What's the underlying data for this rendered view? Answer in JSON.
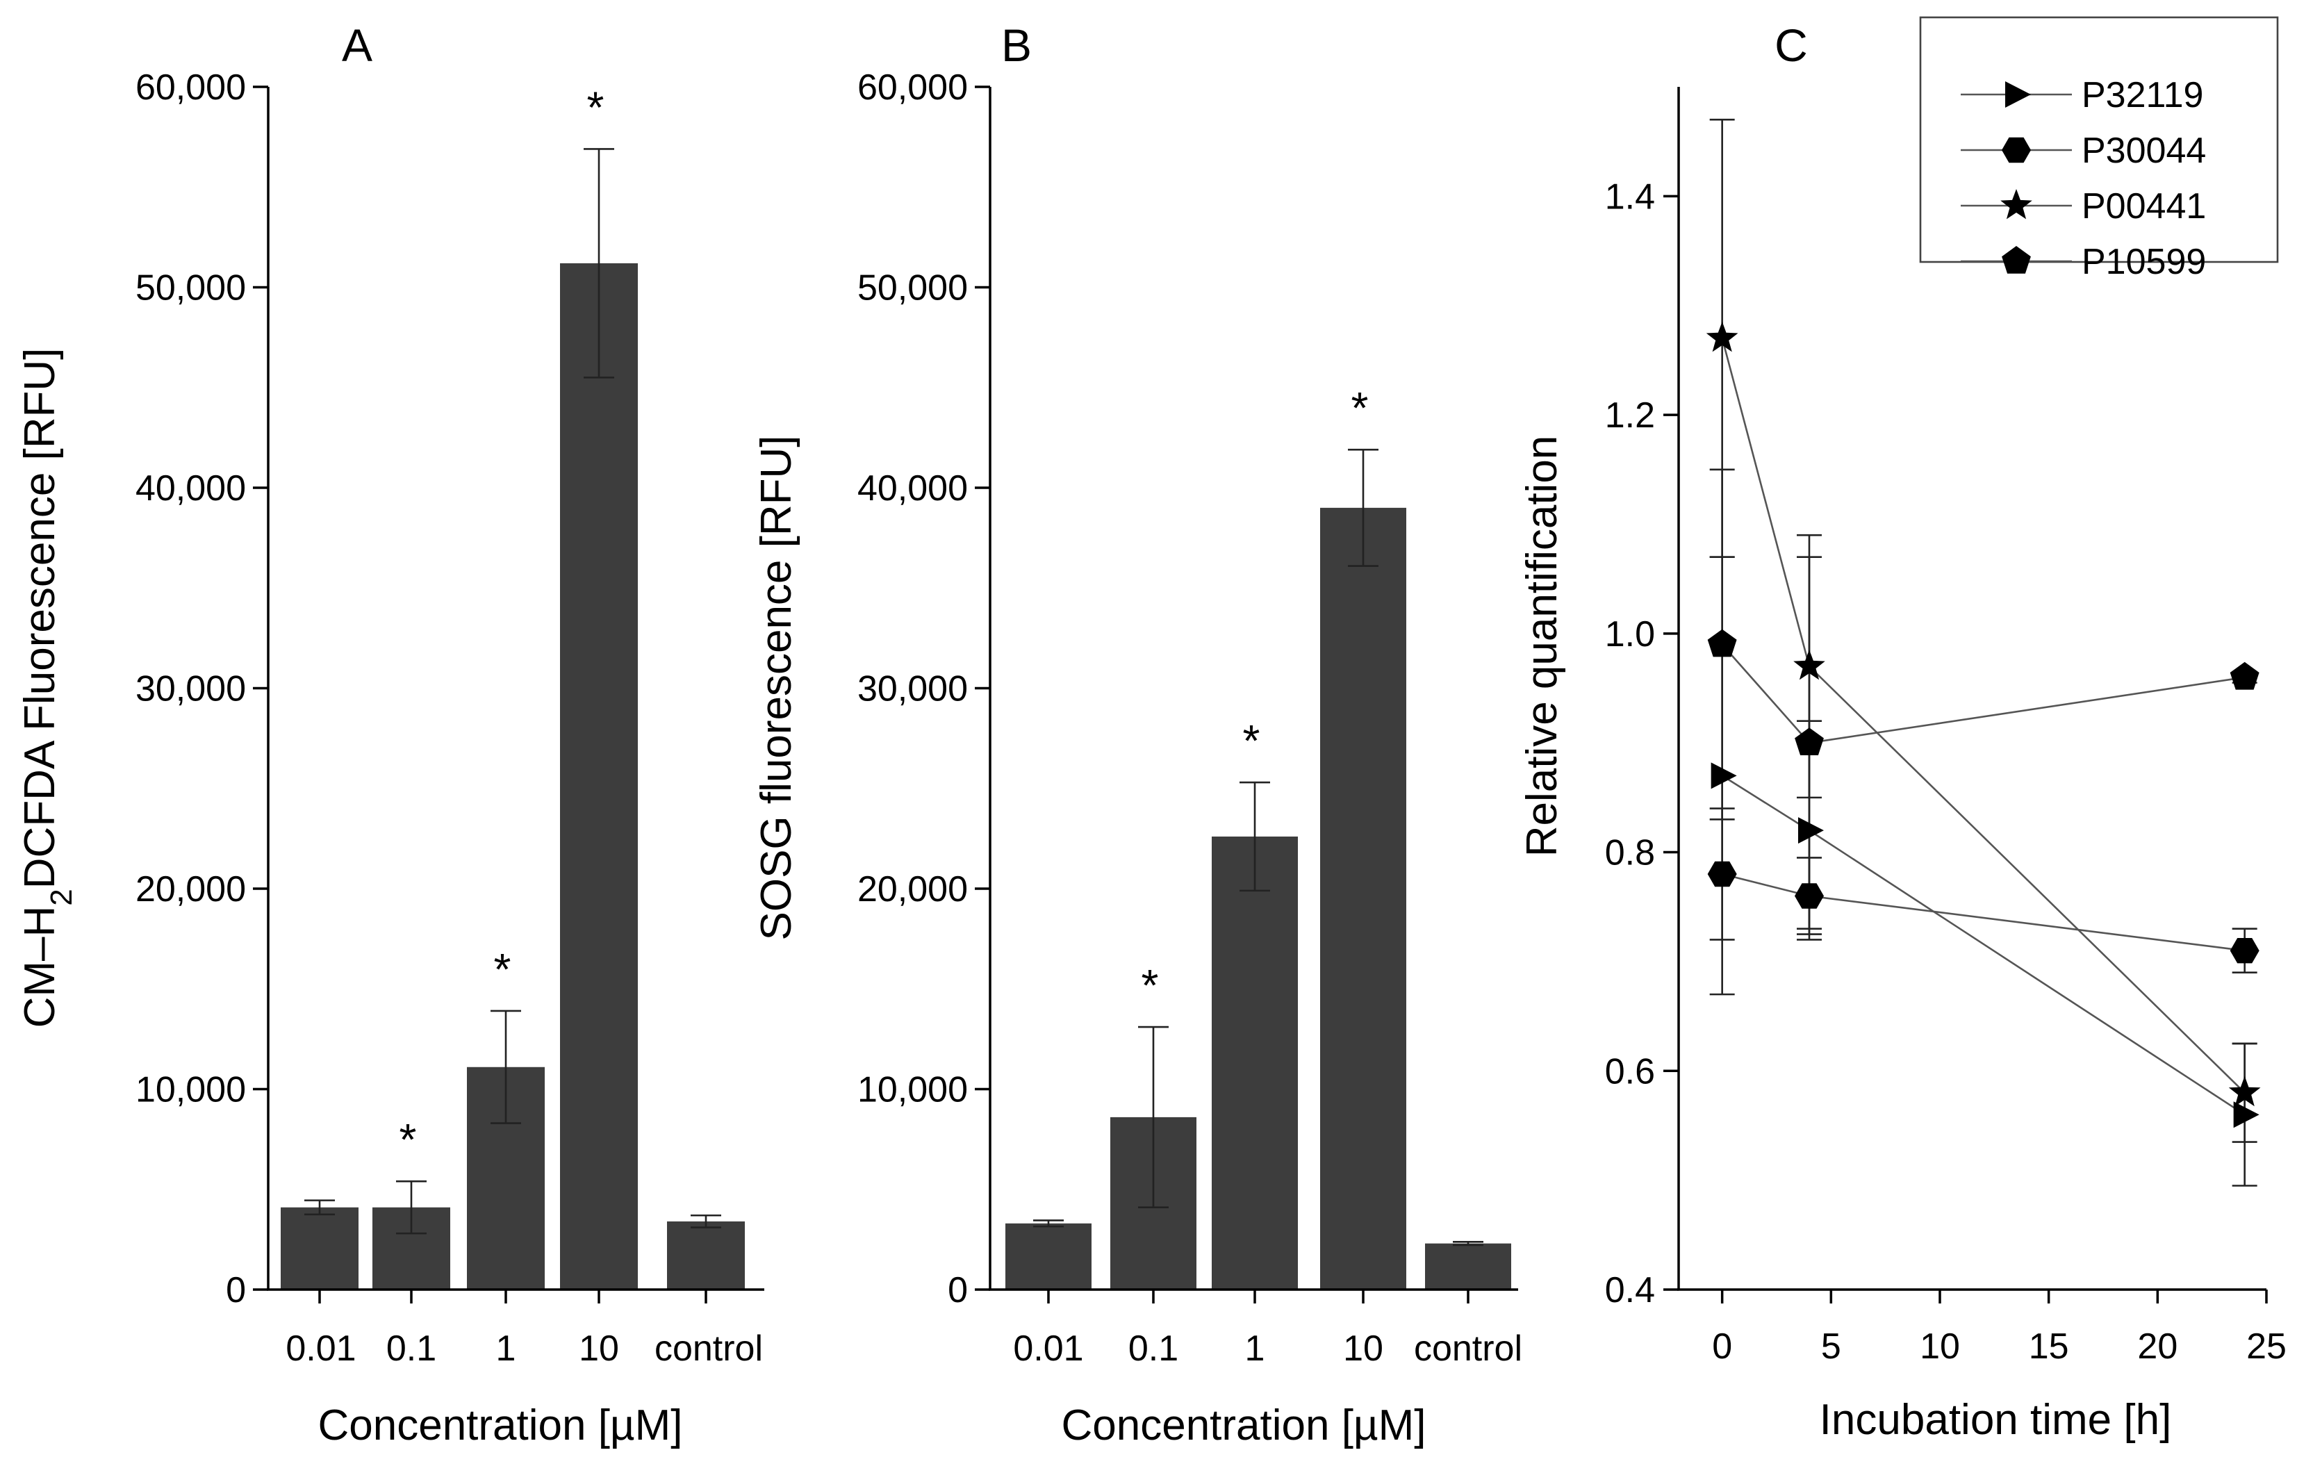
{
  "chart_data": [
    {
      "panel": "A",
      "type": "bar",
      "categories": [
        "0.01",
        "0.1",
        "1",
        "10",
        "control"
      ],
      "values": [
        4100,
        4100,
        11100,
        51200,
        3400
      ],
      "errors": [
        350,
        1300,
        2800,
        5700,
        300
      ],
      "significant": [
        "",
        "*",
        "*",
        "*",
        ""
      ],
      "ylabel_prefix": "CM–H",
      "ylabel_sub": "2",
      "ylabel_suffix": "DCFDA Fluorescence [RFU]",
      "xlabel": "Concentration [µM]",
      "ylim": [
        0,
        60000
      ],
      "yticks": [
        0,
        10000,
        20000,
        30000,
        40000,
        50000,
        60000
      ],
      "ytick_labels": [
        "0",
        "10,000",
        "20,000",
        "30,000",
        "40,000",
        "50,000",
        "60,000"
      ],
      "bar_color": "#3d3d3d"
    },
    {
      "panel": "B",
      "type": "bar",
      "categories": [
        "0.01",
        "0.1",
        "1",
        "10",
        "control"
      ],
      "values": [
        3300,
        8600,
        22600,
        39000,
        2300
      ],
      "errors": [
        150,
        4500,
        2700,
        2900,
        80
      ],
      "significant": [
        "",
        "*",
        "*",
        "*",
        ""
      ],
      "ylabel": "SOSG fluorescence [RFU]",
      "xlabel": "Concentration [µM]",
      "ylim": [
        0,
        60000
      ],
      "yticks": [
        0,
        10000,
        20000,
        30000,
        40000,
        50000,
        60000
      ],
      "ytick_labels": [
        "0",
        "10,000",
        "20,000",
        "30,000",
        "40,000",
        "50,000",
        "60,000"
      ],
      "bar_color": "#3d3d3d"
    },
    {
      "panel": "C",
      "type": "line",
      "xlabel": "Incubation time [h]",
      "ylabel": "Relative quantification",
      "xlim": [
        -2,
        25
      ],
      "ylim": [
        0.4,
        1.5
      ],
      "xticks": [
        0,
        5,
        10,
        15,
        20,
        25
      ],
      "yticks": [
        0.4,
        0.6,
        0.8,
        1.0,
        1.2,
        1.4
      ],
      "ytick_labels": [
        "0.4",
        "0.6",
        "0.8",
        "1.0",
        "1.2",
        "1.4"
      ],
      "legend_position": "top-right",
      "series": [
        {
          "name": "P32119",
          "marker": "triangle-right",
          "x": [
            0,
            4,
            24
          ],
          "y": [
            0.87,
            0.82,
            0.56
          ],
          "err": [
            0.2,
            0.1,
            0.065
          ]
        },
        {
          "name": "P30044",
          "marker": "hexagon",
          "x": [
            0,
            4,
            24
          ],
          "y": [
            0.78,
            0.76,
            0.71
          ],
          "err": [
            0.06,
            0.035,
            0.02
          ]
        },
        {
          "name": "P00441",
          "marker": "star",
          "x": [
            0,
            4,
            24
          ],
          "y": [
            1.27,
            0.97,
            0.58
          ],
          "err": [
            0.2,
            0.12,
            0.045
          ]
        },
        {
          "name": "P10599",
          "marker": "pentagon",
          "x": [
            0,
            4,
            24
          ],
          "y": [
            0.99,
            0.9,
            0.96
          ],
          "err": [
            0.16,
            0.17,
            0.005
          ]
        }
      ]
    }
  ]
}
